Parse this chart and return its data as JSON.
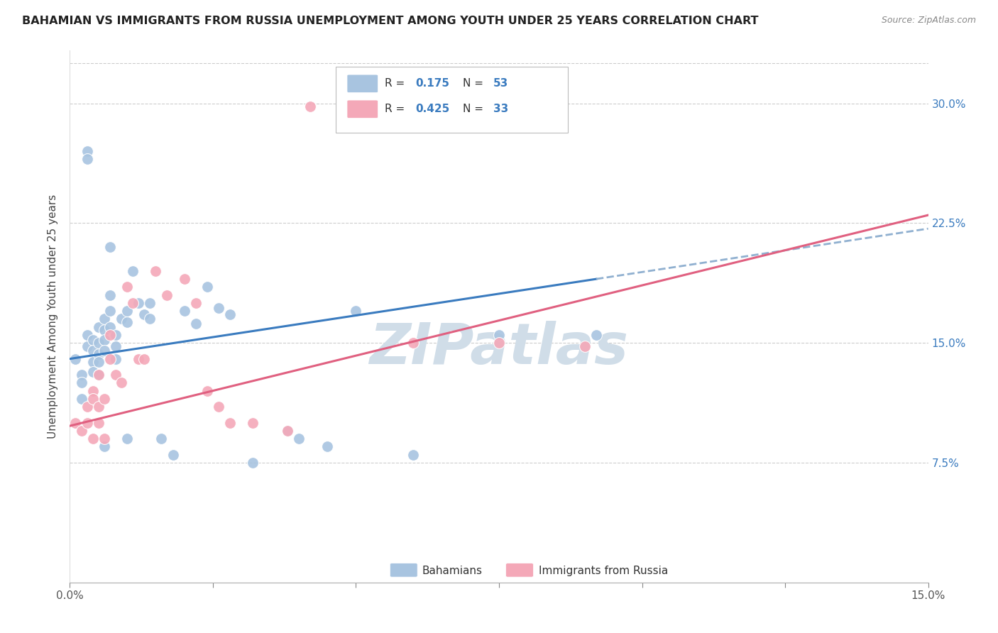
{
  "title": "BAHAMIAN VS IMMIGRANTS FROM RUSSIA UNEMPLOYMENT AMONG YOUTH UNDER 25 YEARS CORRELATION CHART",
  "source": "Source: ZipAtlas.com",
  "ylabel": "Unemployment Among Youth under 25 years",
  "xlim": [
    0,
    0.15
  ],
  "ylim": [
    0,
    0.333
  ],
  "legend_v1": "0.175",
  "legend_nv1": "53",
  "legend_v2": "0.425",
  "legend_nv2": "33",
  "bahamian_color": "#a8c4e0",
  "russia_color": "#f4a8b8",
  "line_blue": "#3a7bbf",
  "line_pink": "#e06080",
  "dashed_color": "#90b0d0",
  "watermark": "ZIPatlas",
  "watermark_color": "#d0dde8",
  "blue_line_x0": 0.0,
  "blue_line_y0": 0.14,
  "blue_line_x1": 0.092,
  "blue_line_y1": 0.19,
  "pink_line_x0": 0.0,
  "pink_line_y0": 0.098,
  "pink_line_x1": 0.15,
  "pink_line_y1": 0.23,
  "bahamians_x": [
    0.001,
    0.002,
    0.002,
    0.002,
    0.003,
    0.003,
    0.003,
    0.003,
    0.004,
    0.004,
    0.004,
    0.004,
    0.005,
    0.005,
    0.005,
    0.005,
    0.005,
    0.006,
    0.006,
    0.006,
    0.006,
    0.006,
    0.007,
    0.007,
    0.007,
    0.007,
    0.008,
    0.008,
    0.008,
    0.009,
    0.01,
    0.01,
    0.01,
    0.011,
    0.012,
    0.013,
    0.014,
    0.014,
    0.016,
    0.018,
    0.02,
    0.022,
    0.024,
    0.026,
    0.028,
    0.032,
    0.038,
    0.04,
    0.045,
    0.05,
    0.06,
    0.075,
    0.092
  ],
  "bahamians_y": [
    0.14,
    0.115,
    0.13,
    0.125,
    0.27,
    0.265,
    0.155,
    0.148,
    0.152,
    0.145,
    0.138,
    0.132,
    0.16,
    0.15,
    0.143,
    0.138,
    0.13,
    0.165,
    0.158,
    0.152,
    0.145,
    0.085,
    0.21,
    0.18,
    0.17,
    0.16,
    0.155,
    0.148,
    0.14,
    0.165,
    0.17,
    0.163,
    0.09,
    0.195,
    0.175,
    0.168,
    0.175,
    0.165,
    0.09,
    0.08,
    0.17,
    0.162,
    0.185,
    0.172,
    0.168,
    0.075,
    0.095,
    0.09,
    0.085,
    0.17,
    0.08,
    0.155,
    0.155
  ],
  "russia_x": [
    0.001,
    0.002,
    0.003,
    0.003,
    0.004,
    0.004,
    0.004,
    0.005,
    0.005,
    0.005,
    0.006,
    0.006,
    0.007,
    0.007,
    0.008,
    0.009,
    0.01,
    0.011,
    0.012,
    0.013,
    0.015,
    0.017,
    0.02,
    0.022,
    0.024,
    0.026,
    0.028,
    0.032,
    0.038,
    0.042,
    0.06,
    0.075,
    0.09
  ],
  "russia_y": [
    0.1,
    0.095,
    0.11,
    0.1,
    0.12,
    0.115,
    0.09,
    0.11,
    0.13,
    0.1,
    0.115,
    0.09,
    0.155,
    0.14,
    0.13,
    0.125,
    0.185,
    0.175,
    0.14,
    0.14,
    0.195,
    0.18,
    0.19,
    0.175,
    0.12,
    0.11,
    0.1,
    0.1,
    0.095,
    0.298,
    0.15,
    0.15,
    0.148
  ]
}
